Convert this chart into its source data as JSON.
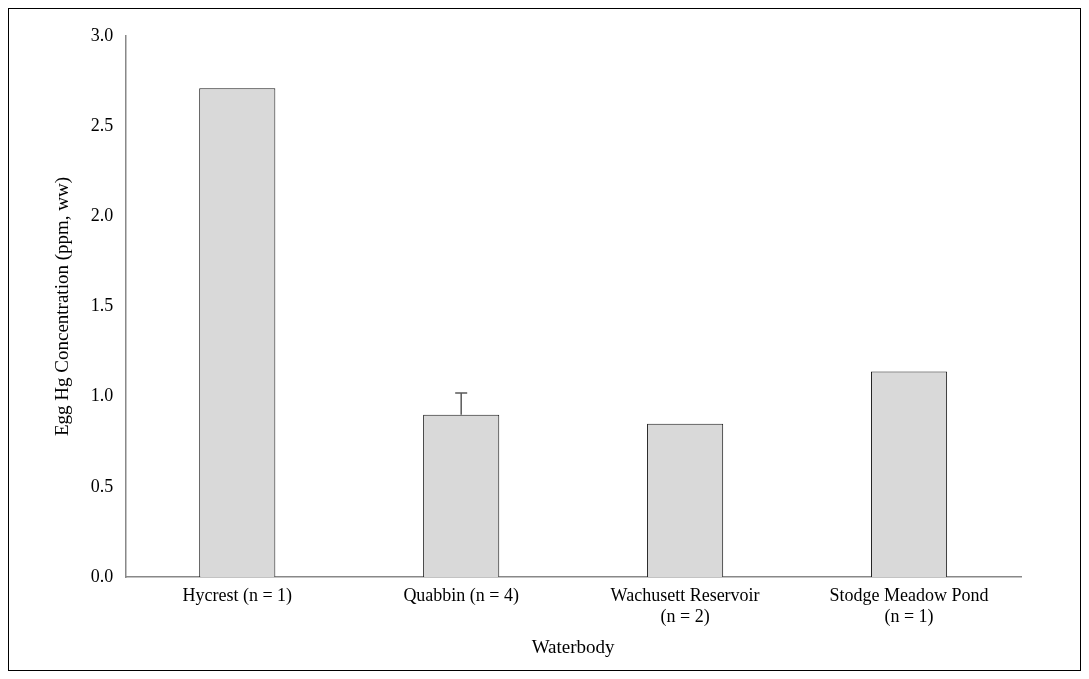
{
  "chart_data": {
    "type": "bar",
    "xlabel": "Waterbody",
    "ylabel": "Egg Hg Concentration (ppm, ww)",
    "categories": [
      "Hycrest (n = 1)",
      "Quabbin (n = 4)",
      "Wachusett Reservoir (n = 2)",
      "Stodge Meadow Pond (n = 1)"
    ],
    "values": [
      2.71,
      0.9,
      0.85,
      1.14
    ],
    "errors": [
      null,
      [
        0.9,
        1.02
      ],
      null,
      null
    ],
    "color": "#d9d9d9",
    "ylim": [
      0,
      3
    ],
    "yticks": [
      {
        "value": 0,
        "label": "0.0"
      },
      {
        "value": 0.5,
        "label": "0.5"
      },
      {
        "value": 1,
        "label": "1.0"
      },
      {
        "value": 1.5,
        "label": "1.5"
      },
      {
        "value": 2,
        "label": "2.0"
      },
      {
        "value": 2.5,
        "label": "2.5"
      },
      {
        "value": 3,
        "label": "3.0"
      }
    ],
    "grid": false,
    "legend": false
  }
}
